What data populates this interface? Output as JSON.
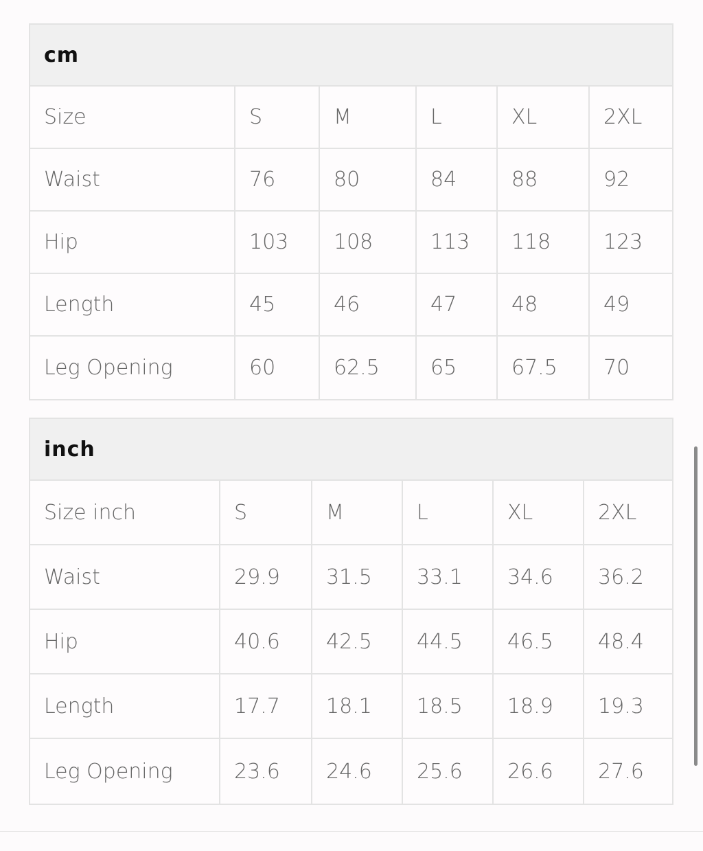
{
  "tables": [
    {
      "title": "cm",
      "header": [
        "Size",
        "S",
        "M",
        "L",
        "XL",
        "2XL"
      ],
      "rows": [
        [
          "Waist",
          "76",
          "80",
          "84",
          "88",
          "92"
        ],
        [
          "Hip",
          "103",
          "108",
          "113",
          "118",
          "123"
        ],
        [
          "Length",
          "45",
          "46",
          "47",
          "48",
          "49"
        ],
        [
          "Leg Opening",
          "60",
          "62.5",
          "65",
          "67.5",
          "70"
        ]
      ]
    },
    {
      "title": "inch",
      "header": [
        "Size inch",
        "S",
        "M",
        "L",
        "XL",
        "2XL"
      ],
      "rows": [
        [
          "Waist",
          "29.9",
          "31.5",
          "33.1",
          "34.6",
          "36.2"
        ],
        [
          "Hip",
          "40.6",
          "42.5",
          "44.5",
          "46.5",
          "48.4"
        ],
        [
          "Length",
          "17.7",
          "18.1",
          "18.5",
          "18.9",
          "19.3"
        ],
        [
          "Leg Opening",
          "23.6",
          "24.6",
          "25.6",
          "26.6",
          "27.6"
        ]
      ]
    }
  ]
}
